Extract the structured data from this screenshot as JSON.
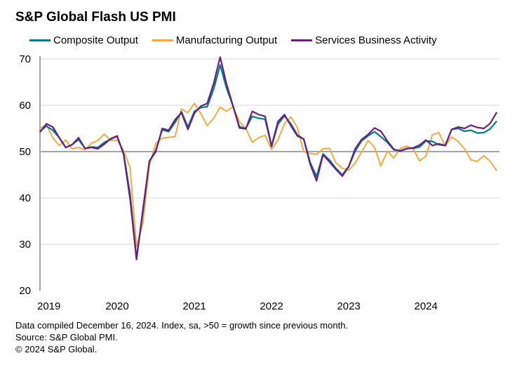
{
  "chart_data": {
    "type": "line",
    "title": "S&P Global Flash US PMI",
    "xlabel": "",
    "ylabel": "",
    "ylim": [
      20,
      70
    ],
    "yticks": [
      "20",
      "30",
      "40",
      "50",
      "60",
      "70"
    ],
    "xticks": [
      "2019",
      "2020",
      "2021",
      "2022",
      "2023",
      "2024"
    ],
    "x_start": "2019-01",
    "x_end": "2024-12",
    "frequency": "monthly",
    "grid": true,
    "reference_line": 50,
    "legend_position": "top",
    "series": [
      {
        "name": "Composite Output",
        "color": "#007a8a",
        "values": [
          54.4,
          55.5,
          54.6,
          53.0,
          50.9,
          51.5,
          52.6,
          50.7,
          51.0,
          50.9,
          52.0,
          52.7,
          53.3,
          49.6,
          40.9,
          27.0,
          37.0,
          47.9,
          50.3,
          54.7,
          54.3,
          56.3,
          58.6,
          55.3,
          58.7,
          59.5,
          59.7,
          63.5,
          68.7,
          63.7,
          59.9,
          55.4,
          55.0,
          57.6,
          57.2,
          57.0,
          51.1,
          55.9,
          57.7,
          56.0,
          53.6,
          52.7,
          47.7,
          44.6,
          49.5,
          48.2,
          46.4,
          45.0,
          46.8,
          50.1,
          52.3,
          53.4,
          54.3,
          53.2,
          52.0,
          50.4,
          50.2,
          50.7,
          50.7,
          51.0,
          52.3,
          52.2,
          51.5,
          51.3,
          54.8,
          55.0,
          54.4,
          54.6,
          54.0,
          54.1,
          54.9,
          56.6
        ]
      },
      {
        "name": "Manufacturing Output",
        "color": "#f5a742",
        "values": [
          55.0,
          55.8,
          53.0,
          51.3,
          52.5,
          50.6,
          50.9,
          50.4,
          51.8,
          52.4,
          53.8,
          52.4,
          52.5,
          50.2,
          46.6,
          29.5,
          34.5,
          47.0,
          51.8,
          52.9,
          53.1,
          53.2,
          59.2,
          58.4,
          60.4,
          58.2,
          55.6,
          57.2,
          59.6,
          58.7,
          59.7,
          56.5,
          55.0,
          52.0,
          53.0,
          53.5,
          50.5,
          52.5,
          56.0,
          57.5,
          55.2,
          50.0,
          49.6,
          49.4,
          50.6,
          50.7,
          47.6,
          46.4,
          46.0,
          47.5,
          49.9,
          52.4,
          51.0,
          46.9,
          50.1,
          48.6,
          50.7,
          51.2,
          50.7,
          48.0,
          49.0,
          53.6,
          54.1,
          51.2,
          53.2,
          52.2,
          50.6,
          48.2,
          47.9,
          49.1,
          47.9,
          45.9
        ]
      },
      {
        "name": "Services Business Activity",
        "color": "#6b1f7c",
        "values": [
          54.2,
          56.0,
          55.3,
          53.0,
          50.9,
          51.5,
          53.0,
          50.7,
          50.9,
          50.6,
          51.6,
          52.8,
          53.4,
          49.4,
          39.8,
          26.7,
          37.5,
          47.9,
          50.0,
          55.0,
          54.6,
          56.9,
          58.4,
          54.8,
          58.3,
          59.8,
          60.4,
          64.7,
          70.4,
          64.6,
          59.9,
          55.1,
          54.9,
          58.7,
          58.0,
          57.6,
          51.2,
          56.5,
          58.0,
          55.6,
          53.4,
          52.7,
          47.3,
          43.7,
          49.3,
          47.8,
          46.2,
          44.7,
          46.8,
          50.6,
          52.6,
          53.7,
          55.1,
          54.4,
          52.3,
          50.5,
          50.1,
          50.6,
          50.8,
          51.4,
          52.5,
          51.3,
          51.7,
          51.3,
          54.8,
          55.3,
          55.0,
          55.7,
          55.2,
          55.0,
          56.1,
          58.5
        ]
      }
    ]
  },
  "notes": [
    "Data compiled December 16, 2024. Index, sa, >50 = growth since previous month.",
    "Source: S&P Global PMI.",
    "© 2024 S&P Global."
  ]
}
